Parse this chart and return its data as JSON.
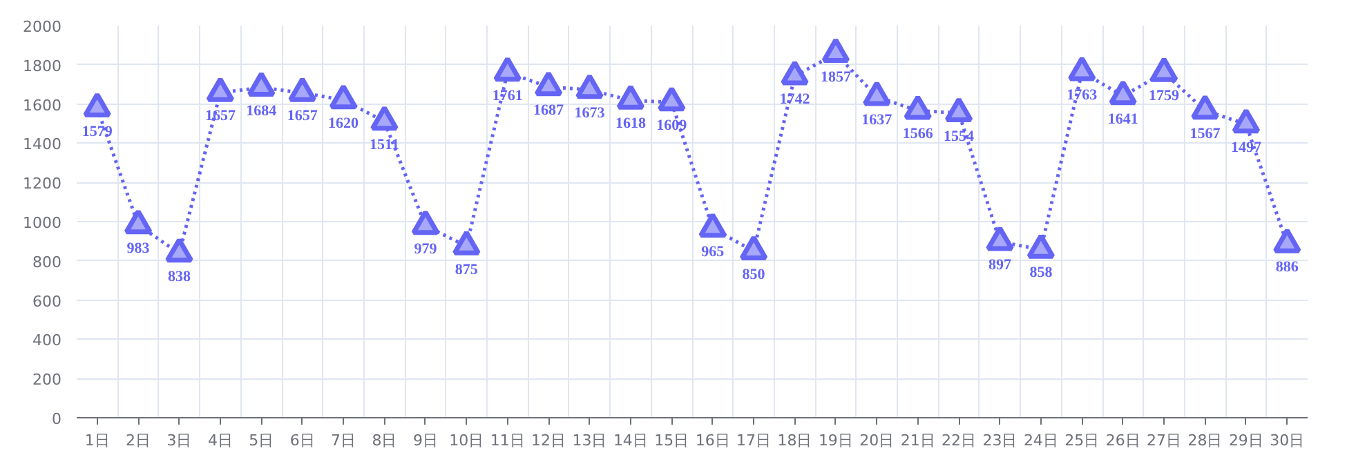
{
  "chart_data": {
    "type": "line",
    "categories": [
      "1日",
      "2日",
      "3日",
      "4日",
      "5日",
      "6日",
      "7日",
      "8日",
      "9日",
      "10日",
      "11日",
      "12日",
      "13日",
      "14日",
      "15日",
      "16日",
      "17日",
      "18日",
      "19日",
      "20日",
      "21日",
      "22日",
      "23日",
      "24日",
      "25日",
      "26日",
      "27日",
      "28日",
      "29日",
      "30日"
    ],
    "series": [
      {
        "color": "#6464f5",
        "values": [
          1579,
          983,
          838,
          1657,
          1684,
          1657,
          1620,
          1511,
          979,
          875,
          1761,
          1687,
          1673,
          1618,
          1609,
          965,
          850,
          1742,
          1857,
          1637,
          1566,
          1554,
          897,
          858,
          1763,
          1641,
          1759,
          1567,
          1497,
          886
        ]
      }
    ],
    "ylim": [
      0,
      2000
    ],
    "yticks": [
      0,
      200,
      400,
      600,
      800,
      1000,
      1200,
      1400,
      1600,
      1800,
      2000
    ],
    "grid": true,
    "marker": "triangle",
    "line_style": "dotted",
    "data_labels": true
  }
}
